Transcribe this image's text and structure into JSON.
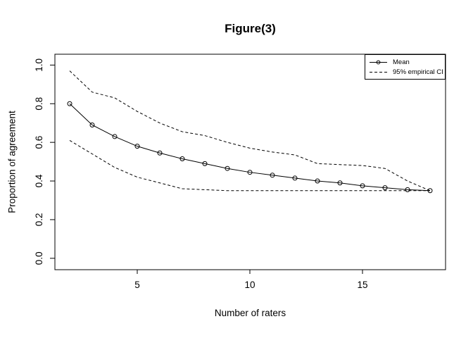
{
  "title": "Figure(3)",
  "chart_data": {
    "type": "line",
    "title": "Figure(3)",
    "xlabel": "Number of raters",
    "ylabel": "Proportion of agreement",
    "x": [
      2,
      3,
      4,
      5,
      6,
      7,
      8,
      9,
      10,
      11,
      12,
      13,
      14,
      15,
      16,
      17,
      18
    ],
    "series": [
      {
        "name": "Mean",
        "style": "solid",
        "marker": "circle",
        "values": [
          0.8,
          0.69,
          0.63,
          0.58,
          0.545,
          0.515,
          0.49,
          0.465,
          0.445,
          0.43,
          0.415,
          0.4,
          0.39,
          0.375,
          0.365,
          0.355,
          0.35
        ]
      },
      {
        "name": "95% empirical CI (upper)",
        "style": "dashed",
        "marker": "none",
        "values": [
          0.97,
          0.86,
          0.83,
          0.76,
          0.7,
          0.655,
          0.635,
          0.6,
          0.57,
          0.55,
          0.535,
          0.49,
          0.485,
          0.48,
          0.465,
          0.4,
          0.35
        ]
      },
      {
        "name": "95% empirical CI (lower)",
        "style": "dashed",
        "marker": "none",
        "values": [
          0.61,
          0.54,
          0.47,
          0.42,
          0.39,
          0.36,
          0.355,
          0.35,
          0.35,
          0.35,
          0.35,
          0.35,
          0.35,
          0.35,
          0.35,
          0.35,
          0.35
        ]
      }
    ],
    "legend": [
      {
        "label": "Mean",
        "line": "solid",
        "marker": "circle"
      },
      {
        "label": "95% empirical CI",
        "line": "dashed",
        "marker": "none"
      }
    ],
    "legend_position": "top-right",
    "xticks": [
      5,
      10,
      15
    ],
    "ytick_labels": [
      "0.0",
      "0.2",
      "0.4",
      "0.6",
      "0.8",
      "1.0"
    ],
    "ytick_values": [
      0,
      0.2,
      0.4,
      0.6,
      0.8,
      1.0
    ],
    "xlim": [
      2,
      18
    ],
    "ylim": [
      0,
      1
    ],
    "grid": false,
    "colors": {
      "line": "#000000",
      "background": "#ffffff",
      "text": "#000000"
    }
  }
}
